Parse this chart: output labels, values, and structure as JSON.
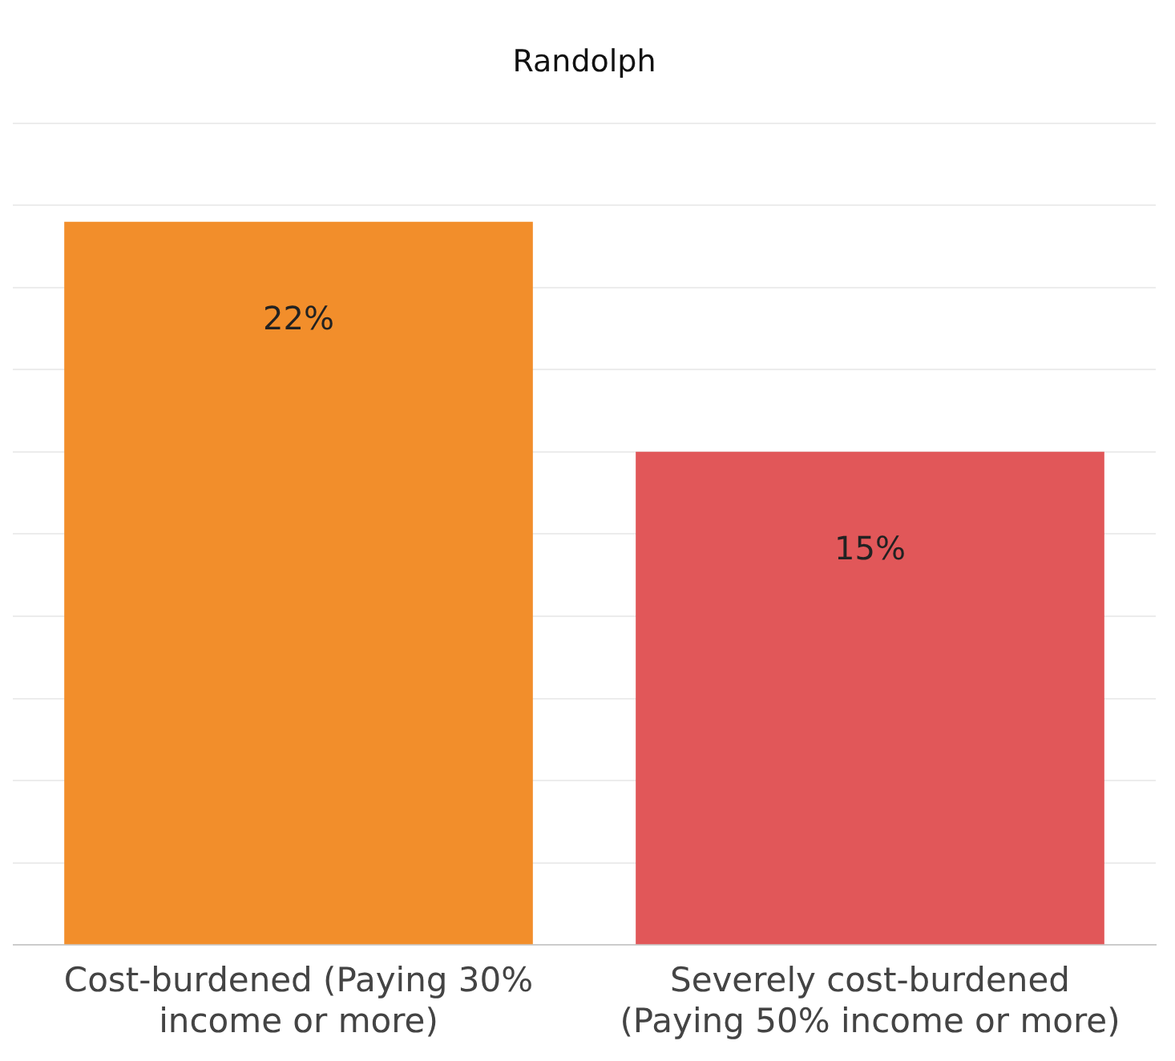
{
  "chart_data": {
    "type": "bar",
    "title": "Randolph",
    "categories": [
      "Cost-burdened (Paying 30% income or more)",
      "Severely cost-burdened (Paying 50% income or more)"
    ],
    "values": [
      22,
      15
    ],
    "colors": [
      "#f28e2b",
      "#e15759"
    ],
    "value_labels": [
      "22%",
      "15%"
    ],
    "ylim": [
      0,
      25
    ],
    "yticks": [
      {
        "value": 0,
        "label": null
      },
      {
        "value": 2.5,
        "label": null
      },
      {
        "value": 5,
        "label": null
      },
      {
        "value": 7.5,
        "label": null
      },
      {
        "value": 10,
        "label": null
      },
      {
        "value": 12.5,
        "label": null
      },
      {
        "value": 15,
        "label": null
      },
      {
        "value": 17.5,
        "label": null
      },
      {
        "value": 20,
        "label": null
      },
      {
        "value": 22.5,
        "label": null
      },
      {
        "value": 25,
        "label": null
      }
    ],
    "grid": "y",
    "tick_labels": "x",
    "legend": false
  }
}
